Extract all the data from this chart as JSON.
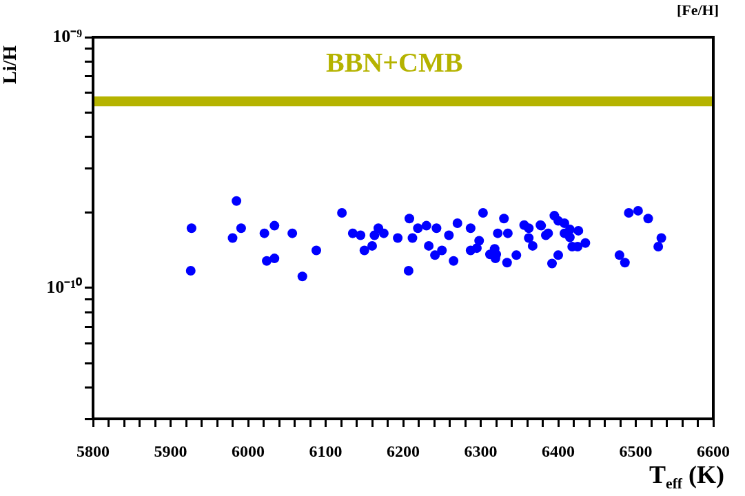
{
  "chart_data": {
    "type": "scatter",
    "xlabel": "T$_{eff}$ (K)",
    "ylabel": "Li/H",
    "log": "y",
    "xlim": [
      5800,
      6600
    ],
    "xticks": [
      5800,
      {
        "value": 5820,
        "label": null
      },
      {
        "value": 5840,
        "label": null
      },
      {
        "value": 5860,
        "label": null
      },
      {
        "value": 5880,
        "label": null
      },
      5900,
      {
        "value": 5920,
        "label": null
      },
      {
        "value": 5940,
        "label": null
      },
      {
        "value": 5960,
        "label": null
      },
      {
        "value": 5980,
        "label": null
      },
      6000,
      {
        "value": 6020,
        "label": null
      },
      {
        "value": 6040,
        "label": null
      },
      {
        "value": 6060,
        "label": null
      },
      {
        "value": 6080,
        "label": null
      },
      6100,
      {
        "value": 6120,
        "label": null
      },
      {
        "value": 6140,
        "label": null
      },
      {
        "value": 6160,
        "label": null
      },
      {
        "value": 6180,
        "label": null
      },
      6200,
      {
        "value": 6220,
        "label": null
      },
      {
        "value": 6240,
        "label": null
      },
      {
        "value": 6260,
        "label": null
      },
      {
        "value": 6280,
        "label": null
      },
      6300,
      {
        "value": 6320,
        "label": null
      },
      {
        "value": 6340,
        "label": null
      },
      {
        "value": 6360,
        "label": null
      },
      {
        "value": 6380,
        "label": null
      },
      6400,
      {
        "value": 6420,
        "label": null
      },
      {
        "value": 6440,
        "label": null
      },
      {
        "value": 6460,
        "label": null
      },
      {
        "value": 6480,
        "label": null
      },
      6500,
      {
        "value": 6520,
        "label": null
      },
      {
        "value": 6540,
        "label": null
      },
      {
        "value": 6560,
        "label": null
      },
      {
        "value": 6580,
        "label": null
      },
      6600
    ],
    "ylim": [
      3e-11,
      1e-09
    ],
    "yticks": [
      {
        "value": 3e-11,
        "label": null
      },
      {
        "value": 4e-11,
        "label": null
      },
      {
        "value": 5e-11,
        "label": null
      },
      {
        "value": 6e-11,
        "label": null
      },
      {
        "value": 7e-11,
        "label": null
      },
      {
        "value": 8e-11,
        "label": null
      },
      {
        "value": 9e-11,
        "label": null
      },
      {
        "value": 1e-10,
        "label": "10⁻¹⁰"
      },
      {
        "value": 2e-10,
        "label": null
      },
      {
        "value": 3e-10,
        "label": null
      },
      {
        "value": 4e-10,
        "label": null
      },
      {
        "value": 5e-10,
        "label": null
      },
      {
        "value": 6e-10,
        "label": null
      },
      {
        "value": 7e-10,
        "label": null
      },
      {
        "value": 8e-10,
        "label": null
      },
      {
        "value": 9e-10,
        "label": null
      },
      {
        "value": 1e-09,
        "label": "10⁻⁹"
      }
    ],
    "marker": "circle",
    "grid": false,
    "legend": false,
    "bands": [
      {
        "axis": "y",
        "from": 5.3e-10,
        "to": 5.8e-10,
        "label": "BBN+CMB",
        "color": "#b5b300"
      }
    ],
    "annotations": [
      "[Fe/H]"
    ],
    "series": [
      {
        "color": "#0000ff",
        "x": [
          5926,
          5927,
          5985,
          5991,
          5980,
          6021,
          6034,
          6024,
          6034,
          6057,
          6088,
          6070,
          6121,
          6135,
          6145,
          6150,
          6160,
          6163,
          6168,
          6175,
          6193,
          6208,
          6207,
          6212,
          6219,
          6230,
          6243,
          6233,
          6250,
          6241,
          6259,
          6270,
          6265,
          6287,
          6298,
          6295,
          6287,
          6303,
          6322,
          6330,
          6335,
          6318,
          6312,
          6320,
          6319,
          6334,
          6346,
          6356,
          6362,
          6362,
          6367,
          6377,
          6384,
          6378,
          6387,
          6395,
          6400,
          6408,
          6408,
          6415,
          6415,
          6426,
          6418,
          6425,
          6435,
          6400,
          6392,
          6491,
          6503,
          6516,
          6533,
          6529,
          6479,
          6486
        ],
        "values": [
          1.17e-10,
          1.73e-10,
          2.22e-10,
          1.73e-10,
          1.58e-10,
          1.65e-10,
          1.77e-10,
          1.28e-10,
          1.31e-10,
          1.65e-10,
          1.41e-10,
          1.11e-10,
          1.99e-10,
          1.65e-10,
          1.62e-10,
          1.41e-10,
          1.47e-10,
          1.62e-10,
          1.73e-10,
          1.65e-10,
          1.58e-10,
          1.89e-10,
          1.17e-10,
          1.58e-10,
          1.73e-10,
          1.77e-10,
          1.73e-10,
          1.47e-10,
          1.41e-10,
          1.35e-10,
          1.62e-10,
          1.81e-10,
          1.28e-10,
          1.73e-10,
          1.54e-10,
          1.44e-10,
          1.41e-10,
          1.99e-10,
          1.65e-10,
          1.89e-10,
          1.65e-10,
          1.43e-10,
          1.36e-10,
          1.36e-10,
          1.31e-10,
          1.26e-10,
          1.35e-10,
          1.78e-10,
          1.73e-10,
          1.58e-10,
          1.47e-10,
          1.78e-10,
          1.62e-10,
          1.77e-10,
          1.65e-10,
          1.94e-10,
          1.85e-10,
          1.81e-10,
          1.65e-10,
          1.71e-10,
          1.59e-10,
          1.69e-10,
          1.46e-10,
          1.46e-10,
          1.51e-10,
          1.35e-10,
          1.25e-10,
          1.99e-10,
          2.03e-10,
          1.89e-10,
          1.58e-10,
          1.46e-10,
          1.35e-10,
          1.26e-10
        ]
      }
    ]
  }
}
